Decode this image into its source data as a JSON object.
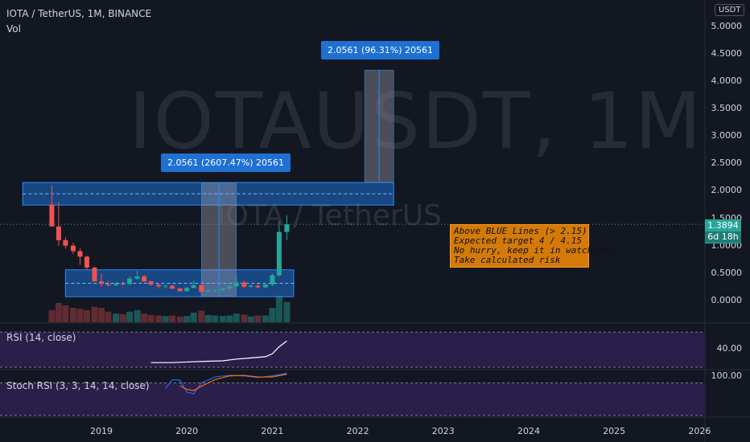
{
  "header": {
    "title": "IOTA / TetherUS, 1M, BINANCE",
    "volume_label": "Vol"
  },
  "watermark": {
    "symbol": "IOTAUSDT, 1M",
    "pair": "IOTA / TetherUS"
  },
  "price_axis": {
    "unit": "USDT",
    "labels": [
      "5.0000",
      "4.5000",
      "4.0000",
      "3.5000",
      "3.0000",
      "2.5000",
      "2.0000",
      "1.5000",
      "1.0000",
      "0.5000",
      "0.0000"
    ],
    "current_price": "1.3894",
    "countdown": "6d 18h"
  },
  "time_axis": {
    "labels": [
      "2019",
      "2020",
      "2021",
      "2022",
      "2023",
      "2024",
      "2025",
      "2026"
    ]
  },
  "measure_labels": {
    "top": "2.0561 (96.31%) 20561",
    "middle": "2.0561 (2607.47%) 20561"
  },
  "note": {
    "lines": [
      "Above BLUE Lines (> 2.15)",
      "Expected target 4 / 4.15",
      "No hurry, keep it in watchlist.",
      "Take calculated risk"
    ]
  },
  "rsi": {
    "label": "RSI (14, close)",
    "axis_label": "40.00"
  },
  "stoch_rsi": {
    "label": "Stoch RSI (3, 3, 14, 14, close)",
    "axis_label": "100.00"
  },
  "colors": {
    "background": "#131722",
    "up": "#26a69a",
    "down": "#ef5350",
    "zone_fill": "#1e70d2",
    "note_bg": "#d37a0a",
    "rsi_band": "#2a1f4a",
    "k_line": "#2962ff",
    "d_line": "#ff6d00"
  },
  "chart_data": {
    "type": "candlestick",
    "symbol": "IOTAUSDT",
    "interval": "1M",
    "price_range": [
      -0.25,
      5.25
    ],
    "candles": [
      {
        "t": 2018.42,
        "o": 1.75,
        "h": 2.1,
        "l": 1.35,
        "c": 1.35
      },
      {
        "t": 2018.5,
        "o": 1.35,
        "h": 1.8,
        "l": 1.0,
        "c": 1.1
      },
      {
        "t": 2018.58,
        "o": 1.1,
        "h": 1.15,
        "l": 0.95,
        "c": 1.0
      },
      {
        "t": 2018.67,
        "o": 1.0,
        "h": 1.05,
        "l": 0.85,
        "c": 0.9
      },
      {
        "t": 2018.75,
        "o": 0.9,
        "h": 0.95,
        "l": 0.65,
        "c": 0.8
      },
      {
        "t": 2018.83,
        "o": 0.8,
        "h": 0.82,
        "l": 0.55,
        "c": 0.6
      },
      {
        "t": 2018.92,
        "o": 0.6,
        "h": 0.62,
        "l": 0.35,
        "c": 0.35
      },
      {
        "t": 2019.0,
        "o": 0.35,
        "h": 0.5,
        "l": 0.25,
        "c": 0.3
      },
      {
        "t": 2019.08,
        "o": 0.3,
        "h": 0.36,
        "l": 0.25,
        "c": 0.28
      },
      {
        "t": 2019.17,
        "o": 0.28,
        "h": 0.34,
        "l": 0.26,
        "c": 0.31
      },
      {
        "t": 2019.25,
        "o": 0.31,
        "h": 0.35,
        "l": 0.27,
        "c": 0.3
      },
      {
        "t": 2019.33,
        "o": 0.3,
        "h": 0.45,
        "l": 0.28,
        "c": 0.4
      },
      {
        "t": 2019.42,
        "o": 0.4,
        "h": 0.54,
        "l": 0.38,
        "c": 0.44
      },
      {
        "t": 2019.5,
        "o": 0.44,
        "h": 0.47,
        "l": 0.32,
        "c": 0.35
      },
      {
        "t": 2019.58,
        "o": 0.35,
        "h": 0.36,
        "l": 0.27,
        "c": 0.29
      },
      {
        "t": 2019.67,
        "o": 0.29,
        "h": 0.3,
        "l": 0.22,
        "c": 0.26
      },
      {
        "t": 2019.75,
        "o": 0.26,
        "h": 0.29,
        "l": 0.22,
        "c": 0.27
      },
      {
        "t": 2019.83,
        "o": 0.27,
        "h": 0.29,
        "l": 0.2,
        "c": 0.22
      },
      {
        "t": 2019.92,
        "o": 0.22,
        "h": 0.23,
        "l": 0.16,
        "c": 0.17
      },
      {
        "t": 2020.0,
        "o": 0.17,
        "h": 0.25,
        "l": 0.16,
        "c": 0.23
      },
      {
        "t": 2020.08,
        "o": 0.23,
        "h": 0.37,
        "l": 0.22,
        "c": 0.28
      },
      {
        "t": 2020.17,
        "o": 0.28,
        "h": 0.29,
        "l": 0.11,
        "c": 0.16
      },
      {
        "t": 2020.25,
        "o": 0.16,
        "h": 0.2,
        "l": 0.14,
        "c": 0.18
      },
      {
        "t": 2020.33,
        "o": 0.18,
        "h": 0.21,
        "l": 0.15,
        "c": 0.19
      },
      {
        "t": 2020.42,
        "o": 0.19,
        "h": 0.24,
        "l": 0.18,
        "c": 0.22
      },
      {
        "t": 2020.5,
        "o": 0.22,
        "h": 0.28,
        "l": 0.2,
        "c": 0.26
      },
      {
        "t": 2020.58,
        "o": 0.26,
        "h": 0.45,
        "l": 0.24,
        "c": 0.33
      },
      {
        "t": 2020.67,
        "o": 0.33,
        "h": 0.36,
        "l": 0.23,
        "c": 0.25
      },
      {
        "t": 2020.75,
        "o": 0.25,
        "h": 0.3,
        "l": 0.23,
        "c": 0.27
      },
      {
        "t": 2020.83,
        "o": 0.27,
        "h": 0.3,
        "l": 0.22,
        "c": 0.24
      },
      {
        "t": 2020.92,
        "o": 0.24,
        "h": 0.32,
        "l": 0.23,
        "c": 0.29
      },
      {
        "t": 2021.0,
        "o": 0.29,
        "h": 0.5,
        "l": 0.27,
        "c": 0.46
      },
      {
        "t": 2021.08,
        "o": 0.46,
        "h": 1.45,
        "l": 0.44,
        "c": 1.25
      },
      {
        "t": 2021.17,
        "o": 1.25,
        "h": 1.55,
        "l": 1.1,
        "c": 1.3894
      }
    ],
    "volume": [
      {
        "t": 2018.42,
        "v": 0.25
      },
      {
        "t": 2018.5,
        "v": 0.4
      },
      {
        "t": 2018.58,
        "v": 0.35
      },
      {
        "t": 2018.67,
        "v": 0.3
      },
      {
        "t": 2018.75,
        "v": 0.28
      },
      {
        "t": 2018.83,
        "v": 0.25
      },
      {
        "t": 2018.92,
        "v": 0.32
      },
      {
        "t": 2019.0,
        "v": 0.3
      },
      {
        "t": 2019.08,
        "v": 0.22
      },
      {
        "t": 2019.17,
        "v": 0.18
      },
      {
        "t": 2019.25,
        "v": 0.17
      },
      {
        "t": 2019.33,
        "v": 0.22
      },
      {
        "t": 2019.42,
        "v": 0.25
      },
      {
        "t": 2019.5,
        "v": 0.18
      },
      {
        "t": 2019.58,
        "v": 0.15
      },
      {
        "t": 2019.67,
        "v": 0.14
      },
      {
        "t": 2019.75,
        "v": 0.13
      },
      {
        "t": 2019.83,
        "v": 0.14
      },
      {
        "t": 2019.92,
        "v": 0.12
      },
      {
        "t": 2020.0,
        "v": 0.13
      },
      {
        "t": 2020.08,
        "v": 0.2
      },
      {
        "t": 2020.17,
        "v": 0.24
      },
      {
        "t": 2020.25,
        "v": 0.15
      },
      {
        "t": 2020.33,
        "v": 0.14
      },
      {
        "t": 2020.42,
        "v": 0.13
      },
      {
        "t": 2020.5,
        "v": 0.14
      },
      {
        "t": 2020.58,
        "v": 0.18
      },
      {
        "t": 2020.67,
        "v": 0.16
      },
      {
        "t": 2020.75,
        "v": 0.12
      },
      {
        "t": 2020.83,
        "v": 0.14
      },
      {
        "t": 2020.92,
        "v": 0.14
      },
      {
        "t": 2021.0,
        "v": 0.3
      },
      {
        "t": 2021.08,
        "v": 0.55
      },
      {
        "t": 2021.17,
        "v": 0.42
      }
    ],
    "zones": [
      {
        "price_low": 1.74,
        "price_high": 2.15,
        "t_start": 2018.08,
        "t_end": 2022.42
      },
      {
        "price_low": 0.07,
        "price_high": 0.56,
        "t_start": 2018.58,
        "t_end": 2021.25
      }
    ],
    "measure_ranges": [
      {
        "t_start": 2020.17,
        "t_end": 2020.58,
        "price_low": 0.07,
        "price_high": 2.15
      },
      {
        "t_start": 2022.08,
        "t_end": 2022.42,
        "price_low": 2.15,
        "price_high": 4.2
      }
    ],
    "current_price_line": 1.3894,
    "rsi": {
      "range": [
        20,
        90
      ],
      "upper_band": 80,
      "lower_band": 20,
      "points": [
        [
          2019.58,
          28
        ],
        [
          2019.83,
          28
        ],
        [
          2020.0,
          29
        ],
        [
          2020.17,
          30
        ],
        [
          2020.42,
          31
        ],
        [
          2020.58,
          34
        ],
        [
          2020.75,
          36
        ],
        [
          2020.92,
          38
        ],
        [
          2021.0,
          43
        ],
        [
          2021.08,
          55
        ],
        [
          2021.17,
          65
        ]
      ]
    },
    "stoch_rsi": {
      "range": [
        20,
        100
      ],
      "upper_band": 80,
      "lower_band": 20,
      "k": [
        [
          2019.75,
          70
        ],
        [
          2019.83,
          86
        ],
        [
          2019.92,
          85
        ],
        [
          2020.0,
          63
        ],
        [
          2020.08,
          60
        ],
        [
          2020.17,
          80
        ],
        [
          2020.33,
          91
        ],
        [
          2020.5,
          94
        ],
        [
          2020.67,
          93
        ],
        [
          2020.83,
          90
        ],
        [
          2021.0,
          93
        ],
        [
          2021.17,
          98
        ]
      ],
      "d": [
        [
          2019.92,
          75
        ],
        [
          2020.0,
          68
        ],
        [
          2020.08,
          66
        ],
        [
          2020.17,
          74
        ],
        [
          2020.33,
          86
        ],
        [
          2020.5,
          93
        ],
        [
          2020.67,
          94
        ],
        [
          2020.83,
          91
        ],
        [
          2021.0,
          91
        ],
        [
          2021.17,
          96
        ]
      ]
    }
  }
}
